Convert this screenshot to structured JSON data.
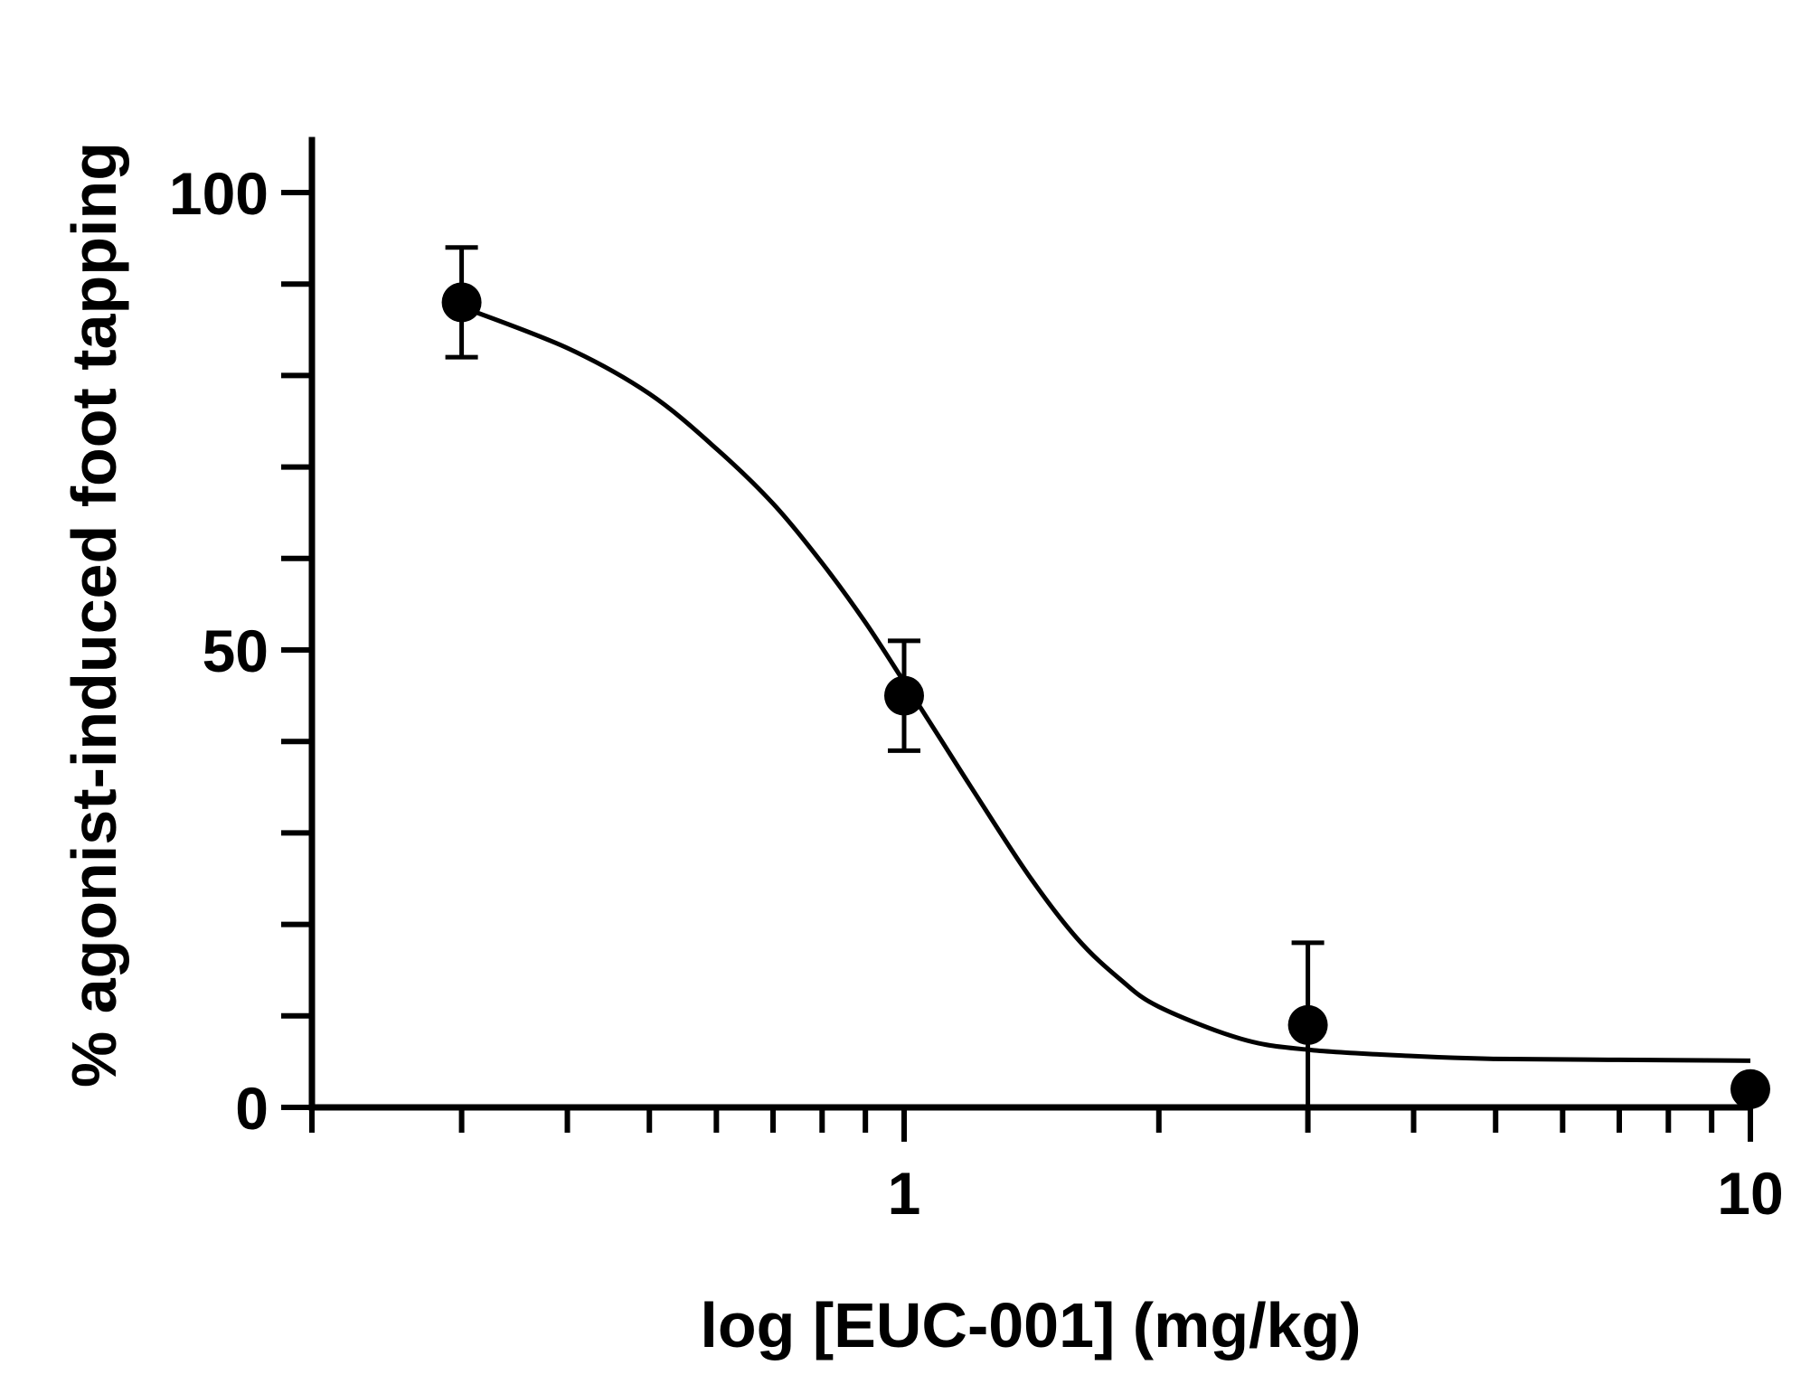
{
  "chart_data": {
    "type": "scatter",
    "title": "",
    "xlabel": "log [EUC-001] (mg/kg)",
    "ylabel": "% agonist-induced foot tapping",
    "x_scale": "log",
    "xlim": [
      0.1,
      10
    ],
    "ylim": [
      0,
      100
    ],
    "x_tick_labels": [
      {
        "value": 1,
        "label": "1"
      },
      {
        "value": 10,
        "label": "10"
      }
    ],
    "y_tick_labels": [
      {
        "value": 0,
        "label": "0"
      },
      {
        "value": 50,
        "label": "50"
      },
      {
        "value": 100,
        "label": "100"
      }
    ],
    "y_minor_ticks": [
      10,
      20,
      30,
      40,
      60,
      70,
      80,
      90
    ],
    "series": [
      {
        "points": [
          {
            "x": 0.3,
            "y": 88,
            "err_upper": 94,
            "err_lower": 82
          },
          {
            "x": 1,
            "y": 45,
            "err_upper": 51,
            "err_lower": 39
          },
          {
            "x": 3,
            "y": 9,
            "err_upper": 18,
            "err_lower": 0
          },
          {
            "x": 10,
            "y": 2,
            "err_upper": 2,
            "err_lower": 2
          }
        ]
      }
    ],
    "fit_curve": {
      "type": "sigmoidal dose-response",
      "x": [
        0.3,
        0.4,
        0.5,
        0.6,
        0.7,
        0.8,
        0.9,
        1.0,
        1.1,
        1.2,
        1.4,
        1.6,
        1.8,
        2.0,
        2.5,
        3.0,
        4.0,
        5.0,
        7.0,
        10.0
      ],
      "y": [
        87.5,
        83,
        78,
        72,
        66,
        59.5,
        53,
        46.5,
        40.5,
        35,
        25.5,
        18.5,
        14,
        11,
        7.5,
        6.3,
        5.6,
        5.3,
        5.2,
        5.1
      ]
    },
    "grid": false,
    "legend": "none",
    "marker_color": "#000000",
    "line_color": "#000000"
  }
}
